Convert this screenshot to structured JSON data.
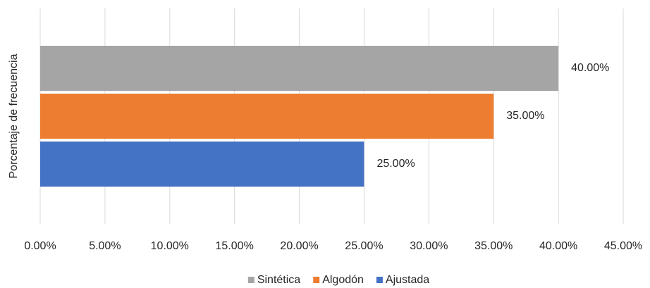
{
  "chart_data": {
    "type": "bar",
    "orientation": "horizontal",
    "ylabel": "Porcentaje de frecuencia",
    "categories": [
      null
    ],
    "xlim": [
      0,
      45
    ],
    "xticks": [
      {
        "value": 0,
        "label": "0.00%"
      },
      {
        "value": 5,
        "label": "5.00%"
      },
      {
        "value": 10,
        "label": "10.00%"
      },
      {
        "value": 15,
        "label": "15.00%"
      },
      {
        "value": 20,
        "label": "20.00%"
      },
      {
        "value": 25,
        "label": "25.00%"
      },
      {
        "value": 30,
        "label": "30.00%"
      },
      {
        "value": 35,
        "label": "35.00%"
      },
      {
        "value": 40,
        "label": "40.00%"
      },
      {
        "value": 45,
        "label": "45.00%"
      }
    ],
    "series": [
      {
        "name": "Sintética",
        "color": "#a5a5a5",
        "values": [
          40
        ],
        "value_labels": [
          "40.00%"
        ]
      },
      {
        "name": "Algodón",
        "color": "#ed7d31",
        "values": [
          35
        ],
        "value_labels": [
          "35.00%"
        ]
      },
      {
        "name": "Ajustada",
        "color": "#4472c4",
        "values": [
          25
        ],
        "value_labels": [
          "25.00%"
        ]
      }
    ],
    "grid": true,
    "legend": "bottom"
  }
}
